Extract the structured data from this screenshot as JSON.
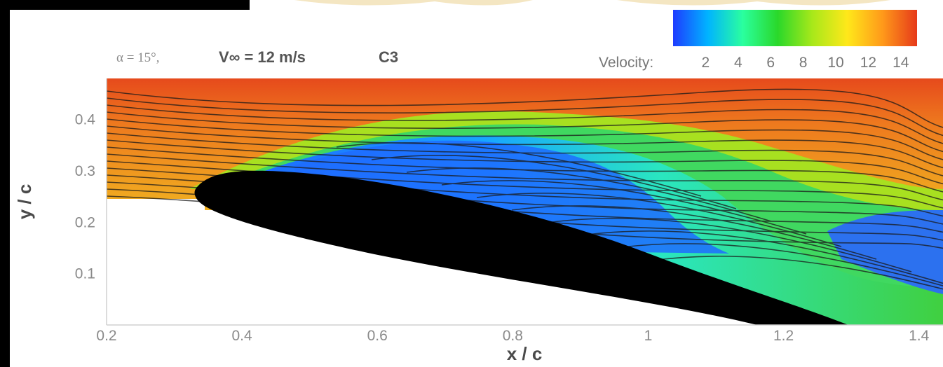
{
  "chart_data": {
    "type": "heatmap",
    "title": "",
    "conditions": {
      "angle": "α = 15°,",
      "velocity": "V∞ = 12 m/s",
      "case": "C3"
    },
    "xlabel": "x / c",
    "ylabel": "y / c",
    "x_ticks": [
      "0.2",
      "0.4",
      "0.6",
      "0.8",
      "1",
      "1.2",
      "1.4"
    ],
    "y_ticks": [
      "0.1",
      "0.2",
      "0.3",
      "0.4"
    ],
    "xlim": [
      0.2,
      1.42
    ],
    "ylim": [
      0.0,
      0.48
    ],
    "colorbar": {
      "label": "Velocity:",
      "ticks": [
        "2",
        "4",
        "6",
        "8",
        "10",
        "12",
        "14"
      ],
      "range": [
        0,
        15
      ],
      "colormap": [
        "#1e3cff",
        "#00b4ff",
        "#2aff9e",
        "#2ad82a",
        "#a8e81a",
        "#ffe81a",
        "#ff9a1a",
        "#e63a1a"
      ]
    },
    "airfoil_color": "#000000",
    "note": "Airfoil shown in black; freestream ~14 m/s above, separated low-velocity region (~2 m/s) over suction side."
  }
}
